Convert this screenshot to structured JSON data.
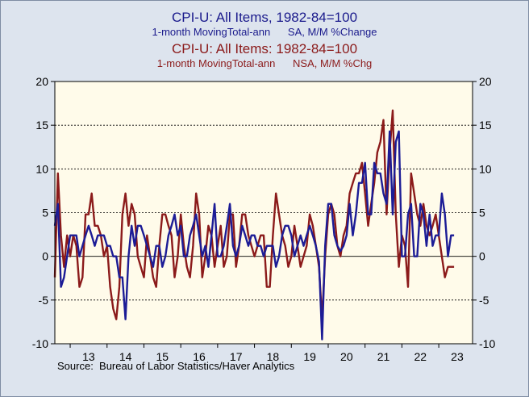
{
  "titles": {
    "line1": "CPI-U: All Items, 1982-84=100",
    "line2": "1-month MovingTotal-ann      SA, M/M %Change",
    "line3": "CPI-U: All Items: 1982-84=100",
    "line4": "1-month MovingTotal-ann      NSA, M/M %Chg"
  },
  "source": "Source:  Bureau of Labor Statistics/Haver Analytics",
  "colors": {
    "sa": "#1c1c96",
    "nsa": "#8b1a1a",
    "plot_bg": "#fffbea",
    "grid": "#000000"
  },
  "chart_data": {
    "type": "line",
    "title": "CPI-U: All Items, 1982-84=100",
    "x_label": "",
    "y_label": "",
    "ylim": [
      -10,
      20
    ],
    "yticks": [
      "20",
      "15",
      "10",
      "5",
      "0",
      "-5",
      "-10"
    ],
    "ytick_values": [
      20,
      15,
      10,
      5,
      0,
      -5,
      -10
    ],
    "x_start": "2012-08",
    "x_end": "2023-11",
    "xticks": [
      "13",
      "14",
      "15",
      "16",
      "17",
      "18",
      "19",
      "20",
      "21",
      "22",
      "23"
    ],
    "grid": "horizontal dashed",
    "series": [
      {
        "name": "1-month MovingTotal-ann SA, M/M %Change",
        "start": "2012-08",
        "values": [
          3.5,
          6.0,
          -3.5,
          -2.4,
          0.0,
          2.4,
          2.4,
          2.4,
          0.0,
          1.2,
          2.4,
          3.5,
          2.4,
          1.2,
          2.4,
          2.4,
          2.4,
          1.2,
          1.2,
          0.0,
          0.0,
          -2.4,
          -2.4,
          -7.2,
          0.0,
          3.5,
          1.2,
          3.5,
          3.5,
          2.4,
          1.2,
          0.0,
          -1.2,
          1.2,
          1.2,
          -1.2,
          0.0,
          2.4,
          3.5,
          4.8,
          2.4,
          3.5,
          0.0,
          0.0,
          2.4,
          3.5,
          4.8,
          2.4,
          0.0,
          1.2,
          -1.2,
          2.4,
          6.0,
          0.0,
          0.0,
          1.2,
          3.5,
          6.0,
          1.2,
          0.0,
          1.2,
          3.5,
          2.4,
          1.2,
          2.4,
          2.4,
          1.2,
          1.2,
          0.0,
          1.2,
          1.2,
          1.2,
          -1.2,
          0.0,
          2.4,
          3.5,
          3.5,
          2.4,
          0.0,
          1.2,
          2.4,
          1.2,
          2.4,
          3.5,
          2.4,
          1.2,
          -0.6,
          -9.5,
          1.2,
          6.0,
          6.0,
          2.4,
          1.2,
          0.6,
          1.2,
          2.4,
          6.0,
          2.4,
          4.8,
          8.4,
          8.4,
          10.7,
          4.8,
          4.8,
          10.7,
          9.5,
          9.5,
          7.2,
          6.0,
          14.3,
          4.8,
          13.1,
          14.3,
          0.0,
          0.0,
          4.8,
          6.0,
          0.0,
          0.0,
          6.0,
          4.8,
          1.2,
          4.8,
          1.2,
          2.4,
          2.4,
          7.2,
          4.8,
          0.0,
          2.4,
          2.4
        ]
      },
      {
        "name": "1-month MovingTotal-ann NSA, M/M %Chg",
        "start": "2012-08",
        "values": [
          -2.4,
          9.5,
          2.4,
          -1.2,
          2.4,
          0.0,
          2.4,
          1.2,
          -3.5,
          -2.4,
          4.8,
          4.8,
          7.2,
          3.5,
          3.5,
          2.4,
          0.0,
          1.2,
          -3.5,
          -6.0,
          -7.2,
          -3.5,
          4.8,
          7.2,
          3.5,
          6.0,
          4.8,
          0.0,
          -1.2,
          -2.4,
          2.4,
          0.0,
          -2.4,
          -3.5,
          1.2,
          4.8,
          4.8,
          3.5,
          2.4,
          -2.4,
          0.0,
          4.8,
          1.2,
          -1.2,
          -2.4,
          1.2,
          7.2,
          4.8,
          -2.4,
          0.0,
          3.5,
          2.4,
          -1.2,
          1.2,
          3.5,
          -1.2,
          0.0,
          4.8,
          4.8,
          -1.2,
          1.2,
          4.8,
          4.8,
          2.4,
          1.2,
          0.0,
          1.2,
          2.4,
          2.4,
          -3.5,
          -3.5,
          2.4,
          7.2,
          4.8,
          2.4,
          1.2,
          -1.2,
          0.0,
          3.5,
          1.2,
          -1.2,
          0.0,
          1.2,
          4.8,
          3.5,
          1.2,
          -1.2,
          -7.2,
          0.0,
          4.8,
          6.0,
          4.8,
          1.2,
          0.0,
          2.4,
          3.5,
          7.2,
          8.4,
          9.5,
          9.5,
          10.7,
          7.2,
          3.5,
          6.0,
          8.4,
          11.9,
          13.1,
          15.6,
          4.8,
          11.9,
          16.7,
          4.8,
          -1.2,
          2.4,
          1.2,
          -3.5,
          9.5,
          7.2,
          4.8,
          3.5,
          6.0,
          3.5,
          2.4,
          3.5,
          4.8,
          2.4,
          0.0,
          -2.4,
          -1.2,
          -1.2,
          -1.2
        ]
      }
    ]
  }
}
